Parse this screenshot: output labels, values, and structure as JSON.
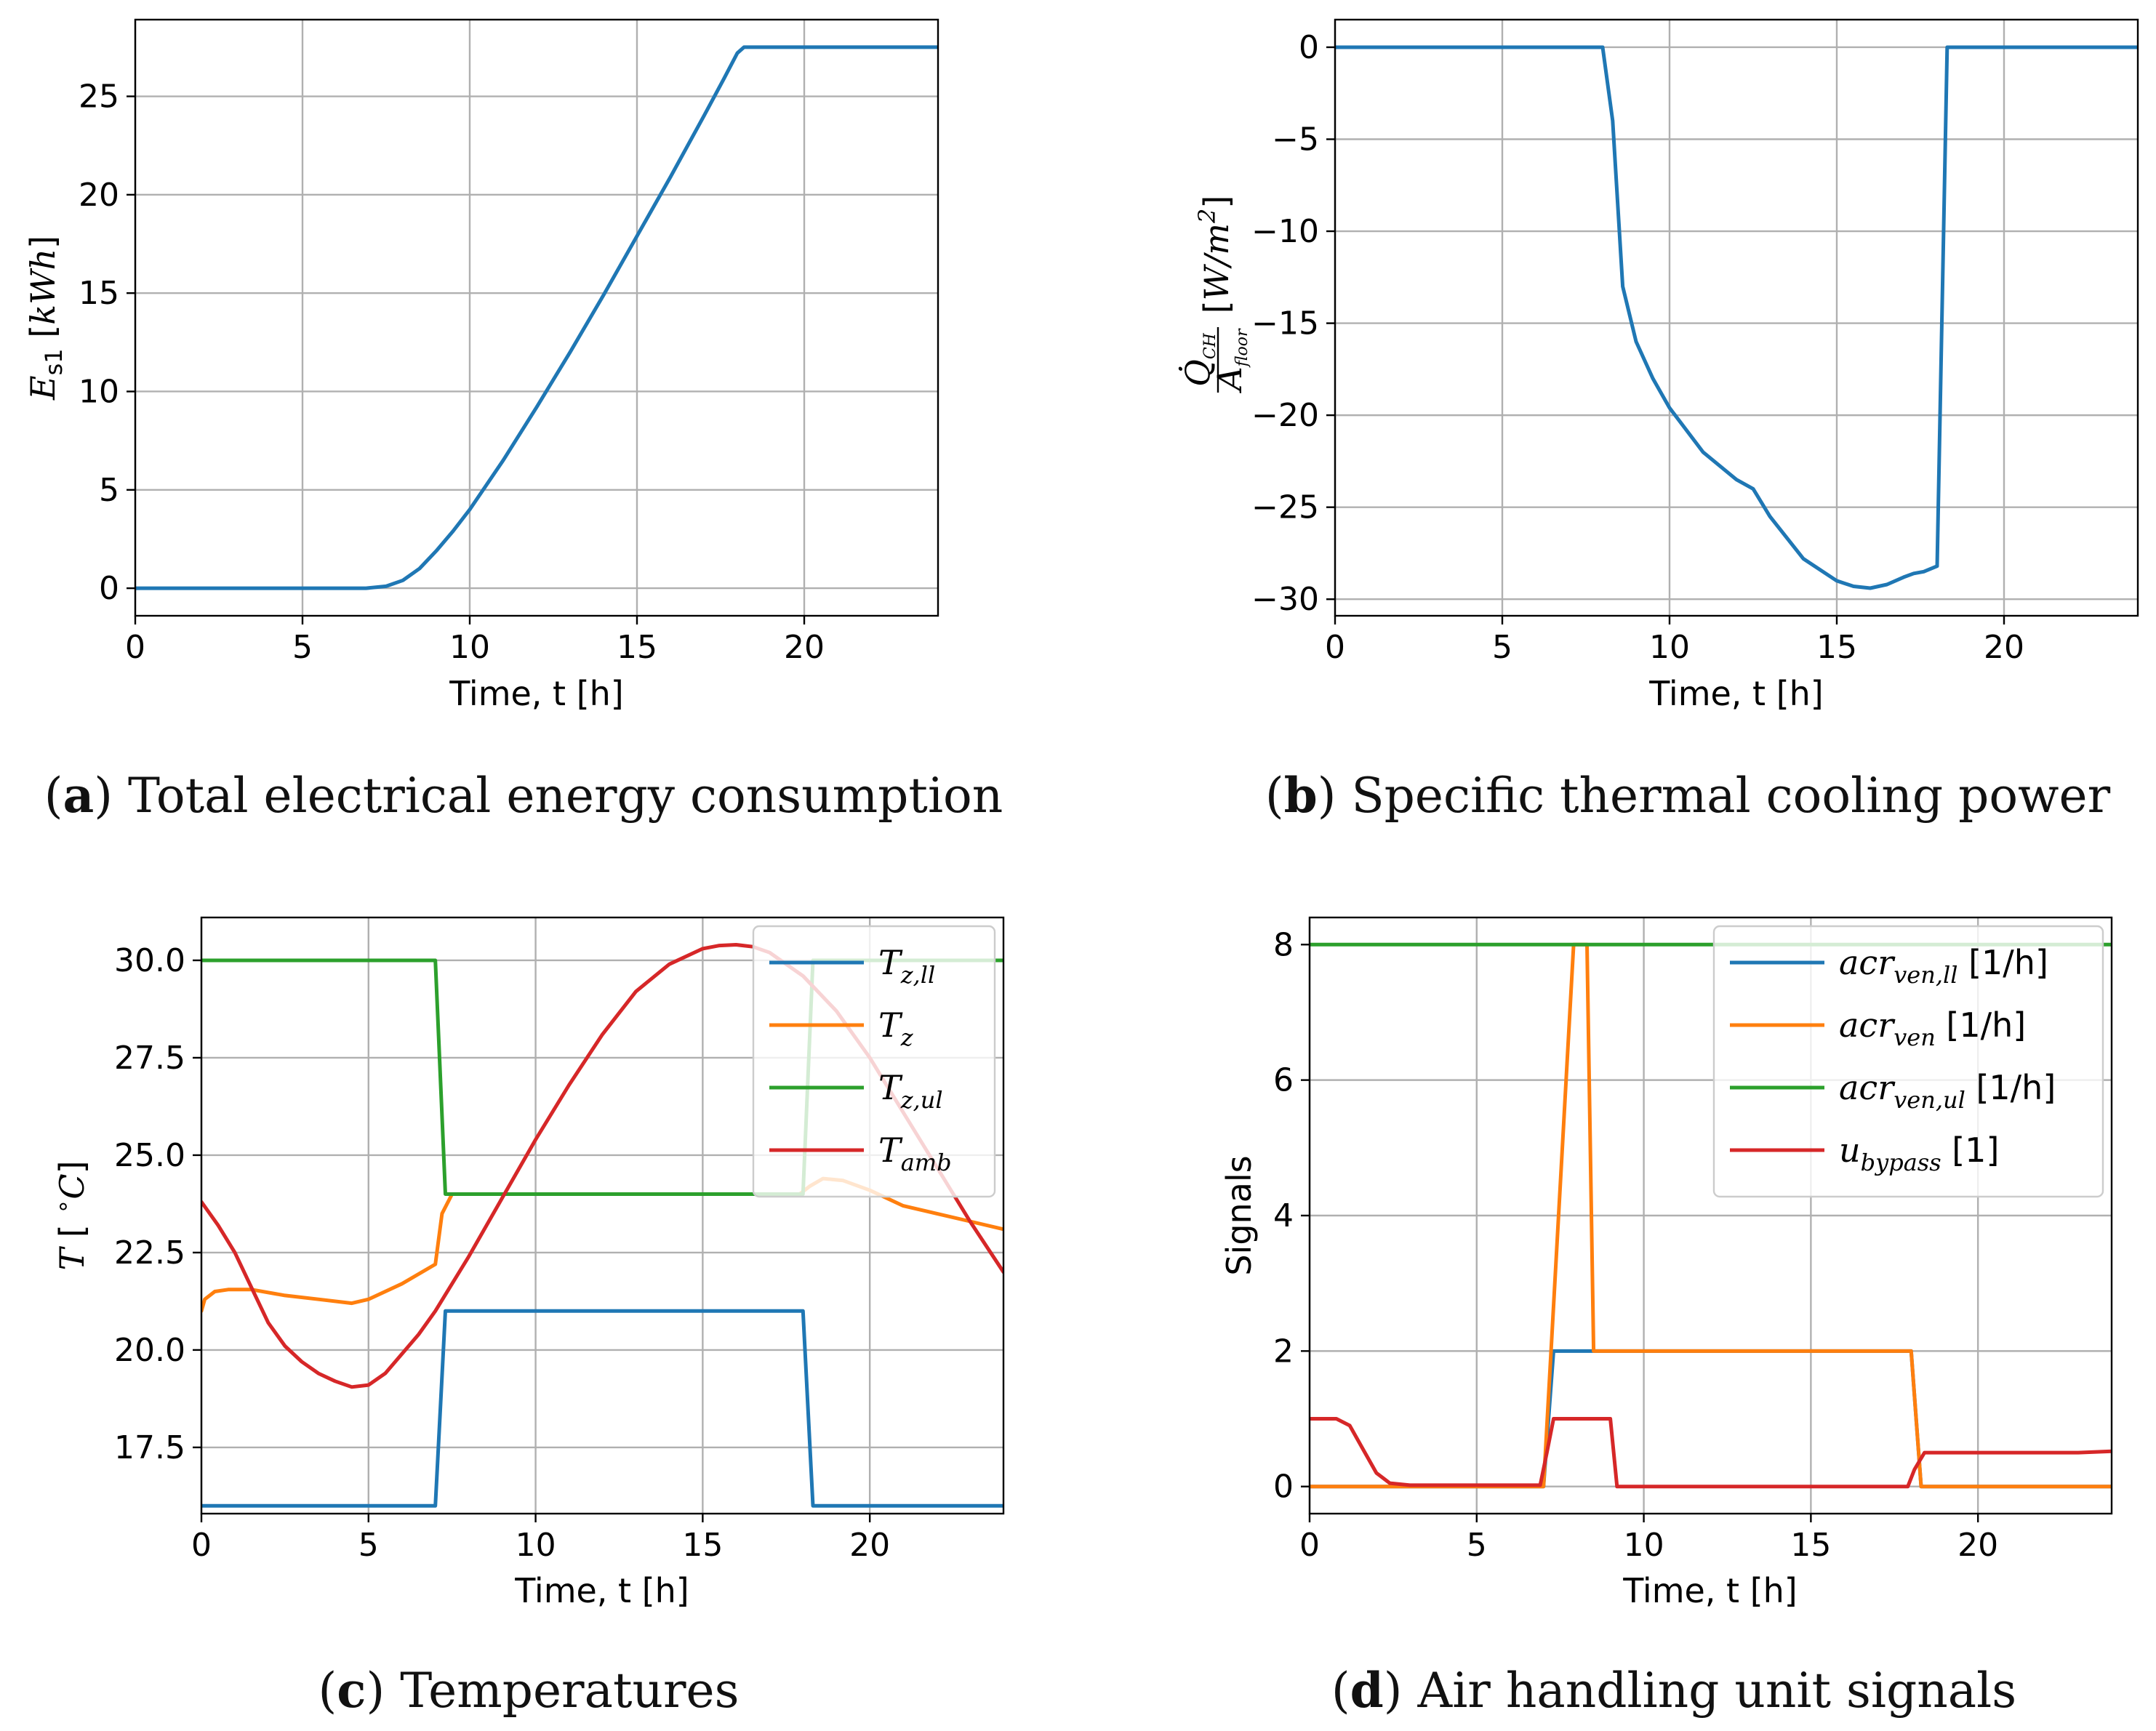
{
  "colors": {
    "blue": "#1f77b4",
    "orange": "#ff7f0e",
    "green": "#2ca02c",
    "red": "#d62728"
  },
  "captions": [
    {
      "letter": "a",
      "text": "Total electrical energy consumption"
    },
    {
      "letter": "b",
      "text": "Specific thermal cooling power"
    },
    {
      "letter": "c",
      "text": "Temperatures"
    },
    {
      "letter": "d",
      "text": "Air handling unit signals"
    }
  ],
  "chart_data": [
    {
      "id": "a",
      "type": "line",
      "xlabel": "Time, t [h]",
      "ylabel": "E_s1 [kWh]",
      "xlim": [
        0,
        24
      ],
      "ylim": [
        -1.4,
        28.9
      ],
      "xticks": [
        0,
        5,
        10,
        15,
        20
      ],
      "yticks": [
        0,
        5,
        10,
        15,
        20,
        25
      ],
      "ytick_labels": [
        "0",
        "5",
        "10",
        "15",
        "20",
        "25"
      ],
      "grid": true,
      "series": [
        {
          "name": "E_s1",
          "color": "blue",
          "x": [
            0,
            6.9,
            7.5,
            8.0,
            8.5,
            9.0,
            9.5,
            10,
            11,
            12,
            13,
            14,
            15,
            16,
            17,
            17.6,
            18.0,
            18.2,
            24
          ],
          "y": [
            0,
            0,
            0.1,
            0.4,
            1.0,
            1.9,
            2.9,
            4.0,
            6.5,
            9.2,
            12.0,
            14.9,
            17.9,
            20.9,
            24.0,
            25.9,
            27.2,
            27.5,
            27.5
          ]
        }
      ]
    },
    {
      "id": "b",
      "type": "line",
      "xlabel": "Time, t [h]",
      "ylabel": "Q_CH / A_floor [W/m2]",
      "xlim": [
        0,
        24
      ],
      "ylim": [
        -30.9,
        1.5
      ],
      "xticks": [
        0,
        5,
        10,
        15,
        20
      ],
      "yticks": [
        0,
        -5,
        -10,
        -15,
        -20,
        -25,
        -30
      ],
      "ytick_labels": [
        "0",
        "−5",
        "−10",
        "−15",
        "−20",
        "−25",
        "−30"
      ],
      "grid": true,
      "series": [
        {
          "name": "Q_CH/A_floor",
          "color": "blue",
          "x": [
            0,
            8.0,
            8.3,
            8.6,
            9.0,
            9.5,
            10,
            11,
            12,
            12.5,
            13,
            14,
            15,
            15.5,
            16,
            16.5,
            17,
            17.3,
            17.6,
            18.0,
            18.3,
            24
          ],
          "y": [
            0,
            0,
            -4,
            -13,
            -16,
            -18,
            -19.6,
            -22,
            -23.5,
            -24,
            -25.5,
            -27.8,
            -29.0,
            -29.3,
            -29.4,
            -29.2,
            -28.8,
            -28.6,
            -28.5,
            -28.2,
            0,
            0
          ]
        }
      ]
    },
    {
      "id": "c",
      "type": "line",
      "xlabel": "Time, t [h]",
      "ylabel": "T [°C]",
      "xlim": [
        0,
        24
      ],
      "ylim": [
        15.8,
        31.1
      ],
      "xticks": [
        0,
        5,
        10,
        15,
        20
      ],
      "yticks": [
        17.5,
        20.0,
        22.5,
        25.0,
        27.5,
        30.0
      ],
      "ytick_labels": [
        "17.5",
        "20.0",
        "22.5",
        "25.0",
        "27.5",
        "30.0"
      ],
      "grid": true,
      "legend": "top-right",
      "series": [
        {
          "name": "T",
          "sub": "z,ll",
          "color": "blue",
          "x": [
            0,
            7.0,
            7.3,
            18.0,
            18.3,
            24
          ],
          "y": [
            16,
            16,
            21,
            21,
            16,
            16
          ]
        },
        {
          "name": "T",
          "sub": "z",
          "color": "orange",
          "x": [
            0,
            0.1,
            0.4,
            0.8,
            1.5,
            2.5,
            3.5,
            4.5,
            5.0,
            6.0,
            7.0,
            7.2,
            7.5,
            17.9,
            18.2,
            18.6,
            19.2,
            20.0,
            21.0,
            22.0,
            23.0,
            24
          ],
          "y": [
            21.0,
            21.3,
            21.5,
            21.55,
            21.55,
            21.4,
            21.3,
            21.2,
            21.3,
            21.7,
            22.2,
            23.5,
            24.0,
            24.0,
            24.2,
            24.4,
            24.35,
            24.1,
            23.7,
            23.5,
            23.3,
            23.1
          ]
        },
        {
          "name": "T",
          "sub": "z,ul",
          "color": "green",
          "x": [
            0,
            7.0,
            7.3,
            18.0,
            18.3,
            24
          ],
          "y": [
            30,
            30,
            24,
            24,
            30,
            30
          ]
        },
        {
          "name": "T",
          "sub": "amb",
          "color": "red",
          "x": [
            0,
            0.5,
            1.0,
            1.5,
            2.0,
            2.5,
            3.0,
            3.5,
            4.0,
            4.5,
            5.0,
            5.5,
            6.0,
            6.5,
            7.0,
            8.0,
            9.0,
            10,
            11,
            12,
            13,
            14,
            15,
            15.5,
            16,
            16.5,
            17,
            18,
            19,
            20,
            21,
            22,
            23,
            24
          ],
          "y": [
            23.8,
            23.2,
            22.5,
            21.6,
            20.7,
            20.1,
            19.7,
            19.4,
            19.2,
            19.05,
            19.1,
            19.4,
            19.9,
            20.4,
            21.0,
            22.4,
            23.9,
            25.4,
            26.8,
            28.1,
            29.2,
            29.9,
            30.3,
            30.38,
            30.4,
            30.35,
            30.2,
            29.6,
            28.7,
            27.5,
            26.1,
            24.7,
            23.3,
            22.0
          ]
        }
      ]
    },
    {
      "id": "d",
      "type": "line",
      "xlabel": "Time, t [h]",
      "ylabel": "Signals",
      "xlim": [
        0,
        24
      ],
      "ylim": [
        -0.4,
        8.4
      ],
      "xticks": [
        0,
        5,
        10,
        15,
        20
      ],
      "yticks": [
        0,
        2,
        4,
        6,
        8
      ],
      "ytick_labels": [
        "0",
        "2",
        "4",
        "6",
        "8"
      ],
      "grid": true,
      "legend": "top-right",
      "series": [
        {
          "name": "acr",
          "sub": "ven,ll",
          "unit": "[1/h]",
          "color": "blue",
          "x": [
            0,
            7.0,
            7.3,
            8.5,
            18.0,
            18.3,
            24
          ],
          "y": [
            0,
            0,
            2,
            2,
            2,
            0,
            0
          ]
        },
        {
          "name": "acr",
          "sub": "ven",
          "unit": "[1/h]",
          "color": "orange",
          "x": [
            0,
            7.0,
            7.9,
            8.1,
            8.3,
            8.5,
            18.0,
            18.3,
            24
          ],
          "y": [
            0,
            0,
            8,
            8,
            8,
            2,
            2,
            0,
            0
          ]
        },
        {
          "name": "acr",
          "sub": "ven,ul",
          "unit": "[1/h]",
          "color": "green",
          "x": [
            0,
            24
          ],
          "y": [
            8,
            8
          ]
        },
        {
          "name": "u",
          "sub": "bypass",
          "unit": "[1]",
          "color": "red",
          "x": [
            0,
            0.8,
            1.2,
            1.6,
            2.0,
            2.4,
            3.0,
            6.9,
            7.1,
            7.3,
            8.0,
            9.0,
            9.2,
            17.9,
            18.1,
            18.4,
            23.0,
            24
          ],
          "y": [
            1,
            1,
            0.9,
            0.55,
            0.2,
            0.05,
            0.02,
            0.02,
            0.5,
            1.0,
            1.0,
            1.0,
            0,
            0,
            0.25,
            0.5,
            0.5,
            0.52
          ]
        }
      ]
    }
  ]
}
